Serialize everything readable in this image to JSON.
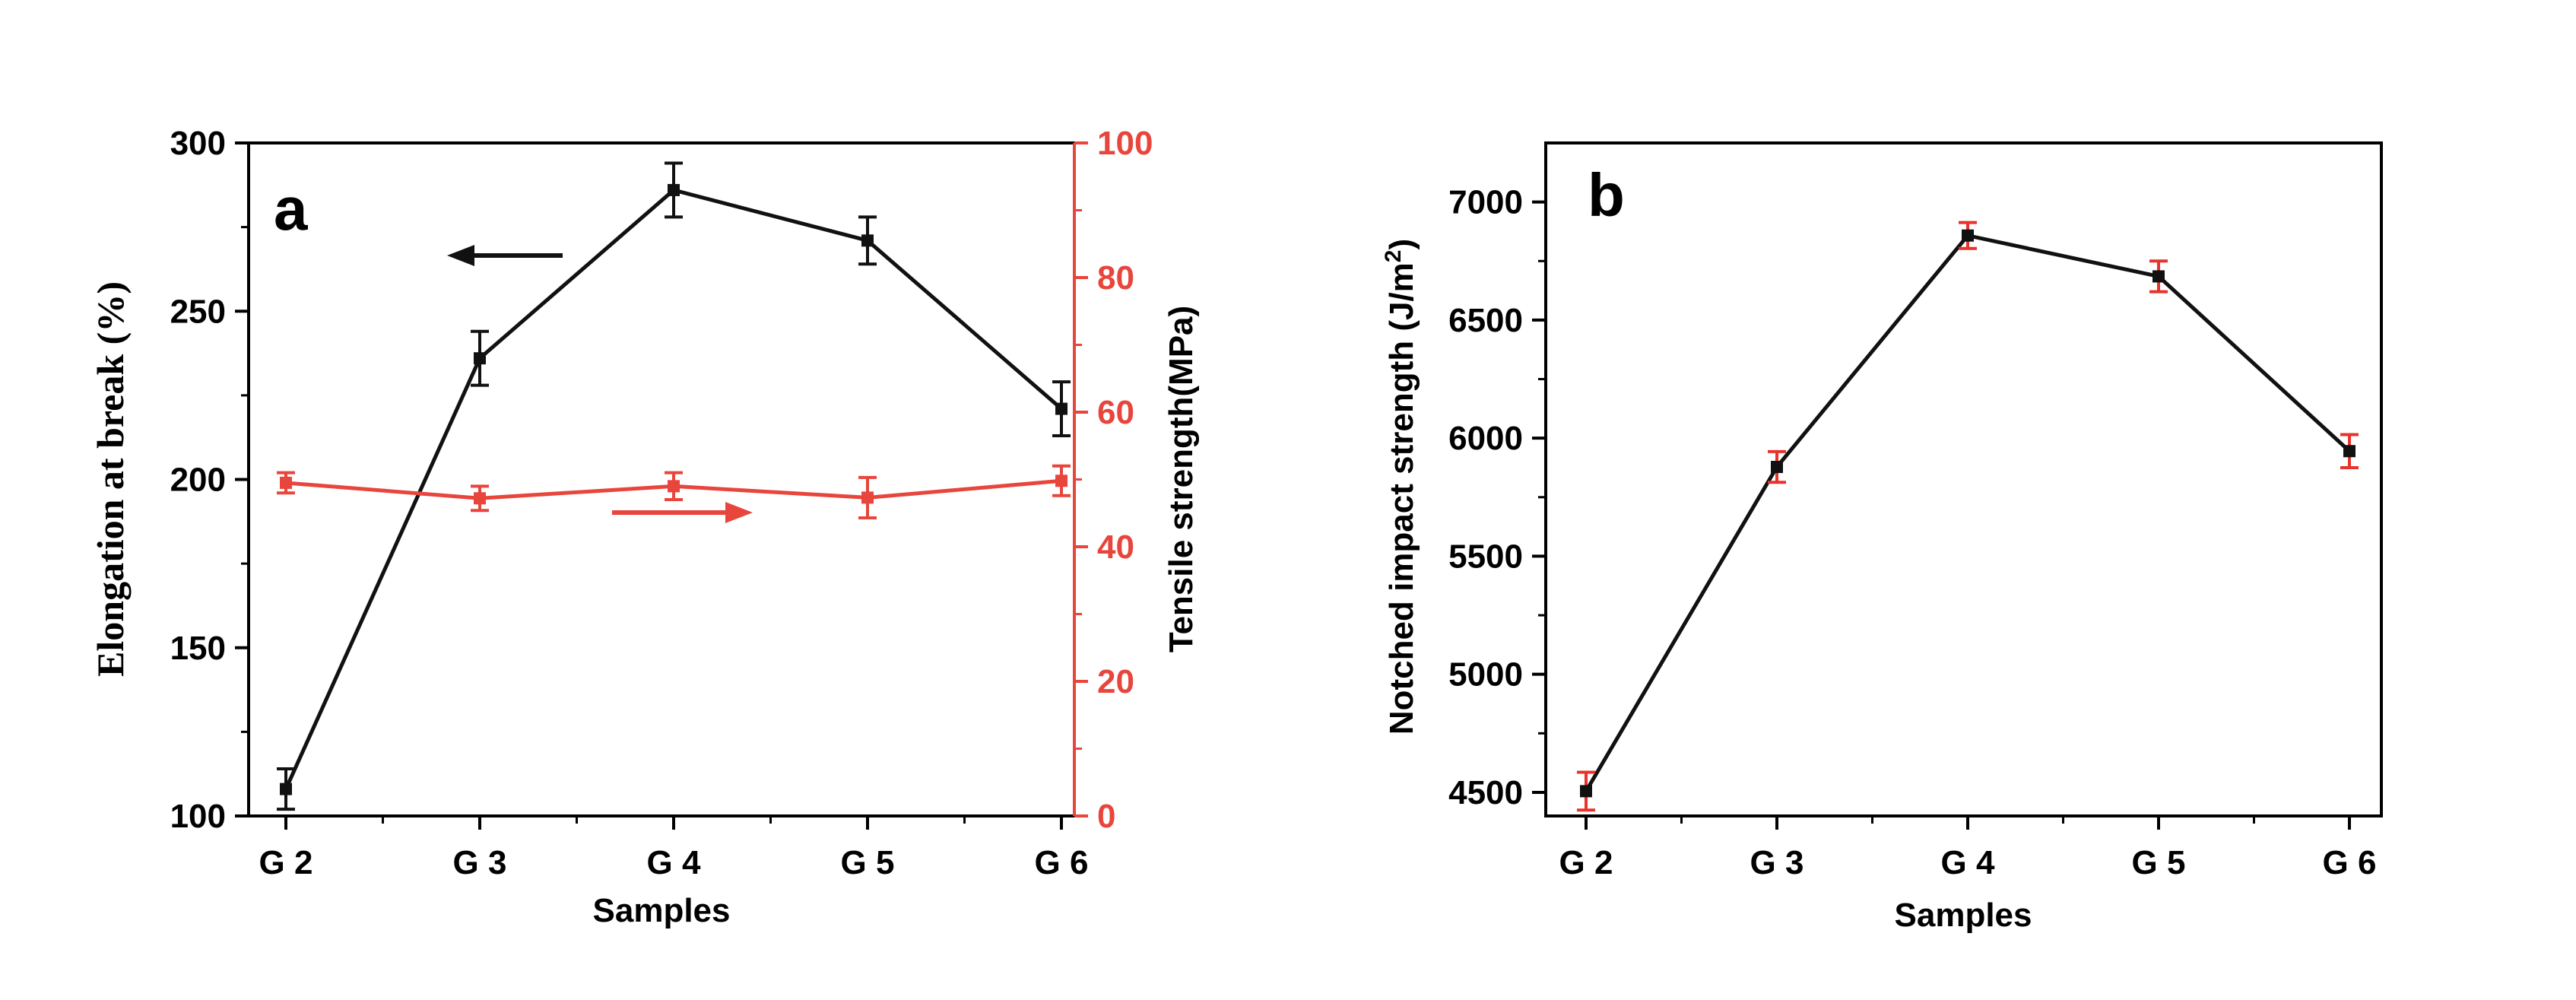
{
  "chart_data": [
    {
      "type": "line",
      "panel_label": "a",
      "categories": [
        "G 2",
        "G 3",
        "G 4",
        "G 5",
        "G 6"
      ],
      "xlabel": "Samples",
      "ylabel_left": "Elongation at break (%)",
      "ylabel_right": "Tensile strength(MPa)",
      "ylim_left": [
        100,
        300
      ],
      "yticks_left": [
        "100",
        "150",
        "200",
        "250",
        "300"
      ],
      "ylim_right": [
        0,
        100
      ],
      "yticks_right": [
        "0",
        "20",
        "40",
        "60",
        "80",
        "100"
      ],
      "series": [
        {
          "name": "Elongation at break",
          "axis": "left",
          "color": "#111111",
          "values": [
            108,
            236,
            286,
            271,
            221
          ],
          "errors": [
            6,
            8,
            8,
            7,
            8
          ]
        },
        {
          "name": "Tensile strength",
          "axis": "right",
          "color": "#e8453c",
          "values": [
            49.5,
            47.2,
            49.0,
            47.3,
            49.8
          ],
          "errors": [
            1.5,
            1.8,
            2.0,
            3.0,
            2.2
          ]
        }
      ]
    },
    {
      "type": "line",
      "panel_label": "b",
      "categories": [
        "G 2",
        "G 3",
        "G 4",
        "G 5",
        "G 6"
      ],
      "xlabel": "Samples",
      "ylabel": "Notched impact strength (J/m",
      "ylabel_sup": "2",
      "ylabel_close": ")",
      "ylim": [
        4400,
        7250
      ],
      "yticks": [
        "4500",
        "5000",
        "5500",
        "6000",
        "6500",
        "7000"
      ],
      "series": [
        {
          "name": "Notched impact strength",
          "color": "#111111",
          "error_color": "#e8322b",
          "values": [
            4505,
            5878,
            6858,
            6685,
            5945
          ],
          "errors": [
            80,
            65,
            55,
            65,
            70
          ]
        }
      ]
    }
  ]
}
